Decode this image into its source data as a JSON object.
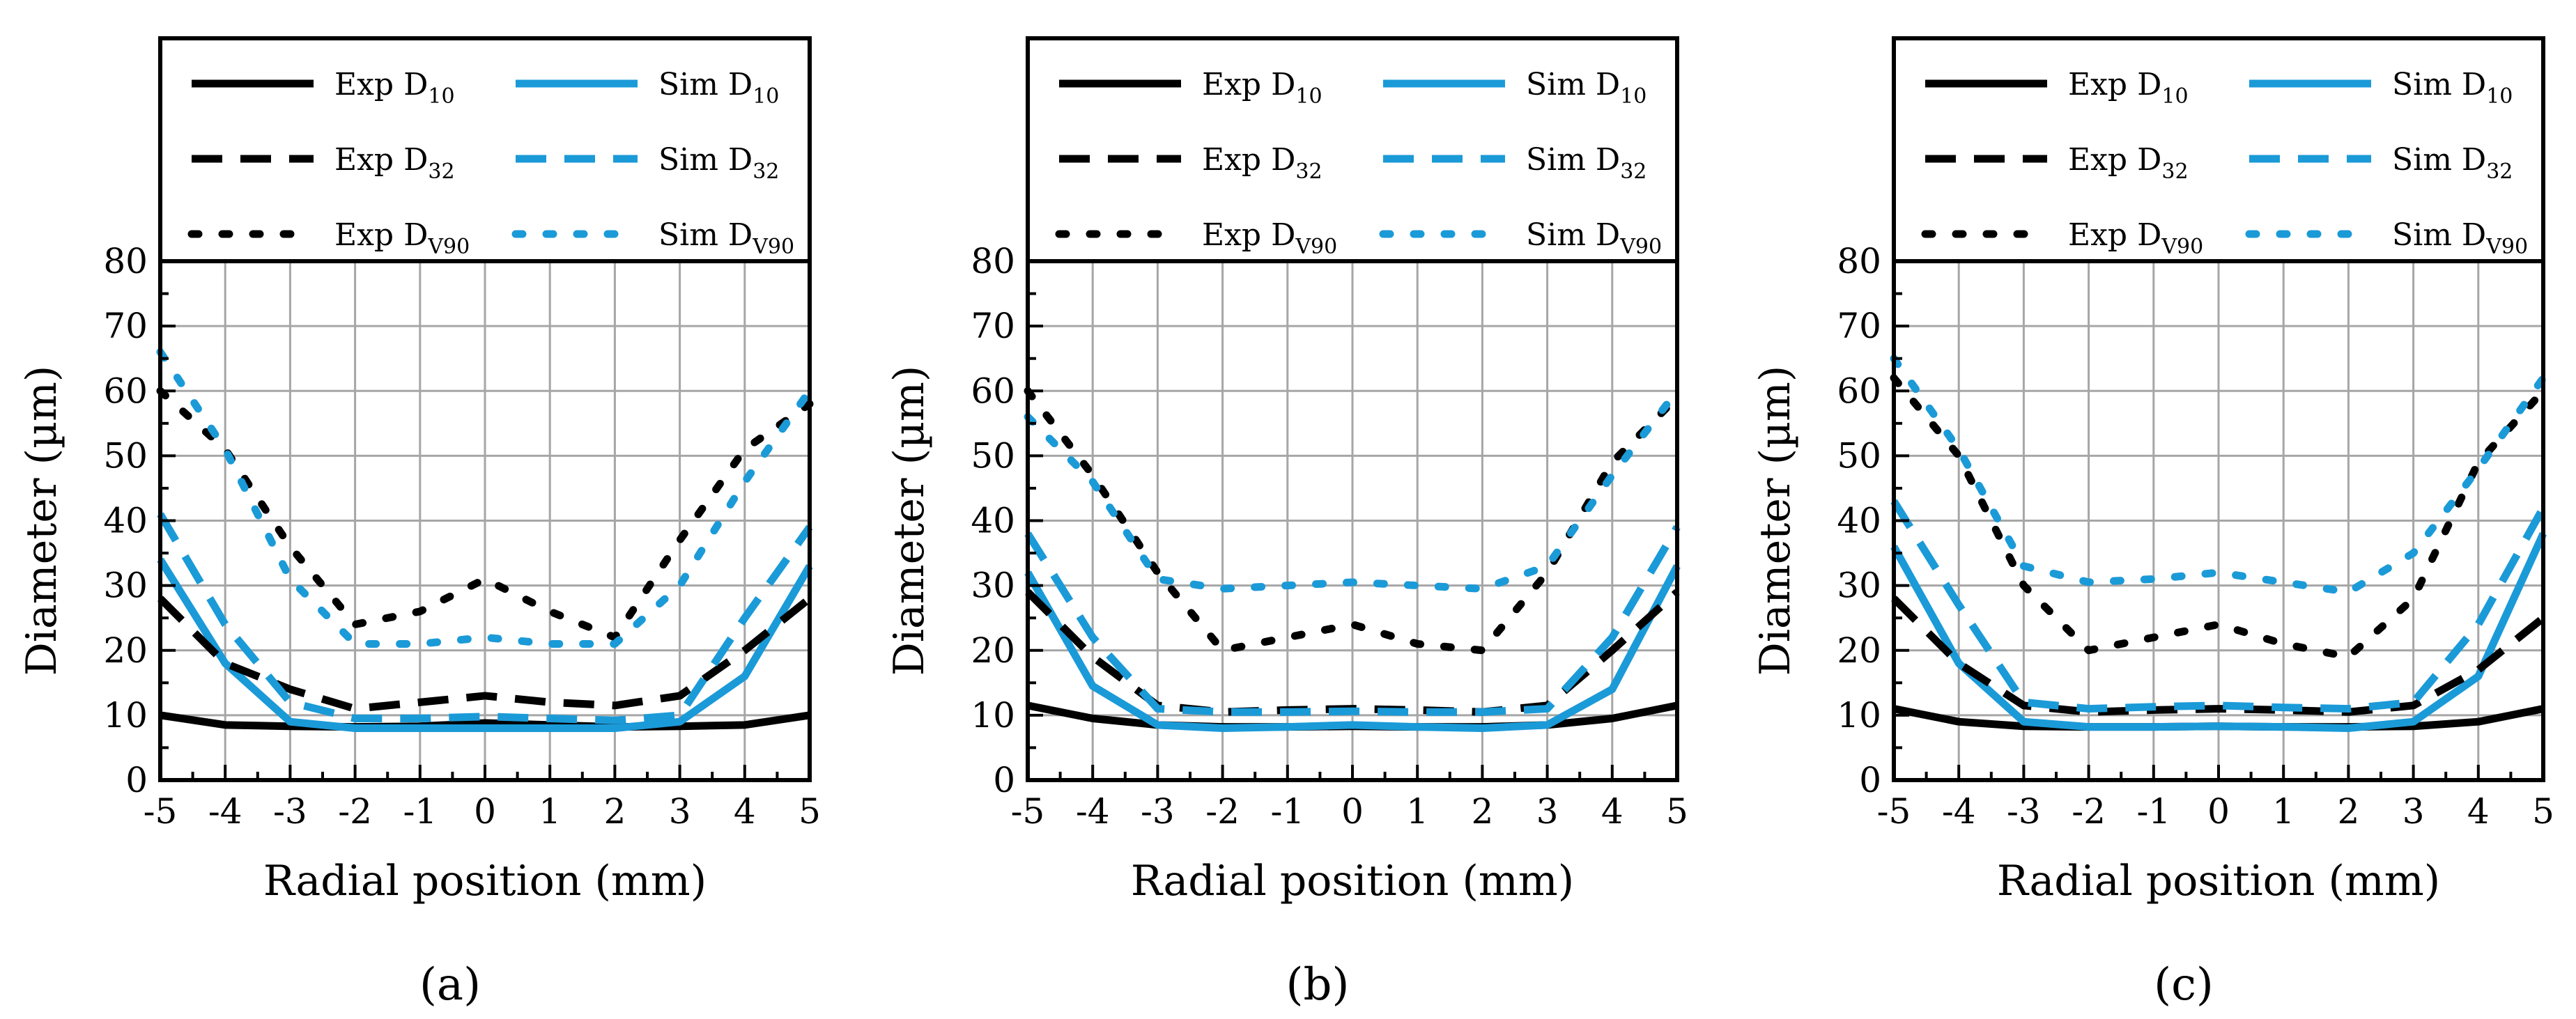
{
  "chart_data": [
    {
      "type": "line",
      "panel_label": "(a)",
      "xlabel": "Radial position (mm)",
      "ylabel": "Diameter (µm)",
      "xlim": [
        -5,
        5
      ],
      "ylim": [
        0,
        80
      ],
      "xticks": [
        -5,
        -4,
        -3,
        -2,
        -1,
        0,
        1,
        2,
        3,
        4,
        5
      ],
      "yticks": [
        0,
        10,
        20,
        30,
        40,
        50,
        60,
        70,
        80
      ],
      "grid": true,
      "legend_position": "top",
      "x": [
        -5,
        -4,
        -3,
        -2,
        -1,
        0,
        1,
        2,
        3,
        4,
        5
      ],
      "series": [
        {
          "name": "Exp D10",
          "label_main": "Exp D",
          "label_sub": "10",
          "color": "#000000",
          "dash": "solid",
          "values": [
            10,
            8.5,
            8.3,
            8.2,
            8.3,
            8.8,
            8.5,
            8.2,
            8.3,
            8.5,
            10
          ]
        },
        {
          "name": "Sim D10",
          "label_main": "Sim D",
          "label_sub": "10",
          "color": "#1b9ad8",
          "dash": "solid",
          "values": [
            34,
            18,
            9,
            8,
            8,
            8,
            8,
            8,
            9,
            16,
            33
          ]
        },
        {
          "name": "Exp D32",
          "label_main": "Exp D",
          "label_sub": "32",
          "color": "#000000",
          "dash": "dash",
          "values": [
            28,
            18,
            14,
            11,
            12,
            13,
            12,
            11.5,
            13,
            20,
            28
          ]
        },
        {
          "name": "Sim D32",
          "label_main": "Sim D",
          "label_sub": "32",
          "color": "#1b9ad8",
          "dash": "dash",
          "values": [
            41,
            24,
            12,
            9.5,
            9.5,
            9.8,
            9.5,
            9.2,
            10,
            25,
            39
          ]
        },
        {
          "name": "Exp DV90",
          "label_main": "Exp D",
          "label_sub": "V90",
          "color": "#000000",
          "dash": "dot",
          "values": [
            60,
            51,
            36,
            24,
            26,
            31,
            26,
            22,
            37,
            51,
            58
          ]
        },
        {
          "name": "Sim DV90",
          "label_main": "Sim D",
          "label_sub": "V90",
          "color": "#1b9ad8",
          "dash": "dot",
          "values": [
            66,
            51,
            31,
            21,
            21,
            22,
            21,
            21,
            30,
            46,
            60
          ]
        }
      ]
    },
    {
      "type": "line",
      "panel_label": "(b)",
      "xlabel": "Radial position (mm)",
      "ylabel": "Diameter (µm)",
      "xlim": [
        -5,
        5
      ],
      "ylim": [
        0,
        80
      ],
      "xticks": [
        -5,
        -4,
        -3,
        -2,
        -1,
        0,
        1,
        2,
        3,
        4,
        5
      ],
      "yticks": [
        0,
        10,
        20,
        30,
        40,
        50,
        60,
        70,
        80
      ],
      "grid": true,
      "legend_position": "top",
      "x": [
        -5,
        -4,
        -3,
        -2,
        -1,
        0,
        1,
        2,
        3,
        4,
        5
      ],
      "series": [
        {
          "name": "Exp D10",
          "label_main": "Exp D",
          "label_sub": "10",
          "color": "#000000",
          "dash": "solid",
          "values": [
            11.5,
            9.5,
            8.5,
            8.2,
            8.2,
            8.3,
            8.2,
            8.2,
            8.5,
            9.5,
            11.5
          ]
        },
        {
          "name": "Sim D10",
          "label_main": "Sim D",
          "label_sub": "10",
          "color": "#1b9ad8",
          "dash": "solid",
          "values": [
            32,
            14.5,
            8.5,
            8,
            8.2,
            8.5,
            8.2,
            8,
            8.5,
            14,
            33
          ]
        },
        {
          "name": "Exp D32",
          "label_main": "Exp D",
          "label_sub": "32",
          "color": "#000000",
          "dash": "dash",
          "values": [
            29,
            19,
            11.5,
            10.5,
            10.8,
            11,
            10.8,
            10.5,
            11.5,
            20,
            29
          ]
        },
        {
          "name": "Sim D32",
          "label_main": "Sim D",
          "label_sub": "32",
          "color": "#1b9ad8",
          "dash": "dash",
          "values": [
            38,
            22,
            11,
            10.5,
            10.5,
            10.6,
            10.5,
            10.5,
            11,
            22,
            39
          ]
        },
        {
          "name": "Exp DV90",
          "label_main": "Exp D",
          "label_sub": "V90",
          "color": "#000000",
          "dash": "dot",
          "values": [
            60,
            47,
            32,
            20,
            22,
            24,
            21,
            20,
            32,
            49,
            59
          ]
        },
        {
          "name": "Sim DV90",
          "label_main": "Sim D",
          "label_sub": "V90",
          "color": "#1b9ad8",
          "dash": "dot",
          "values": [
            56,
            46,
            31,
            29.5,
            30,
            30.5,
            30,
            29.5,
            33,
            47,
            60
          ]
        }
      ]
    },
    {
      "type": "line",
      "panel_label": "(c)",
      "xlabel": "Radial position (mm)",
      "ylabel": "Diameter (µm)",
      "xlim": [
        -5,
        5
      ],
      "ylim": [
        0,
        80
      ],
      "xticks": [
        -5,
        -4,
        -3,
        -2,
        -1,
        0,
        1,
        2,
        3,
        4,
        5
      ],
      "yticks": [
        0,
        10,
        20,
        30,
        40,
        50,
        60,
        70,
        80
      ],
      "grid": true,
      "legend_position": "top",
      "x": [
        -5,
        -4,
        -3,
        -2,
        -1,
        0,
        1,
        2,
        3,
        4,
        5
      ],
      "series": [
        {
          "name": "Exp D10",
          "label_main": "Exp D",
          "label_sub": "10",
          "color": "#000000",
          "dash": "solid",
          "values": [
            11,
            9,
            8.3,
            8.2,
            8.2,
            8.3,
            8.2,
            8.2,
            8.3,
            9,
            11
          ]
        },
        {
          "name": "Sim D10",
          "label_main": "Sim D",
          "label_sub": "10",
          "color": "#1b9ad8",
          "dash": "solid",
          "values": [
            36,
            18,
            9,
            8.2,
            8.2,
            8.3,
            8.2,
            8,
            9,
            16,
            38
          ]
        },
        {
          "name": "Exp D32",
          "label_main": "Exp D",
          "label_sub": "32",
          "color": "#000000",
          "dash": "dash",
          "values": [
            28,
            18,
            11.5,
            10.5,
            10.8,
            11,
            10.8,
            10.5,
            11.5,
            17,
            25
          ]
        },
        {
          "name": "Sim D32",
          "label_main": "Sim D",
          "label_sub": "32",
          "color": "#1b9ad8",
          "dash": "dash",
          "values": [
            43,
            27,
            12,
            11,
            11.3,
            11.5,
            11.2,
            11,
            12,
            24,
            42
          ]
        },
        {
          "name": "Exp DV90",
          "label_main": "Exp D",
          "label_sub": "V90",
          "color": "#000000",
          "dash": "dot",
          "values": [
            62,
            50,
            30,
            20,
            22,
            24,
            21,
            19,
            28,
            49,
            60
          ]
        },
        {
          "name": "Sim DV90",
          "label_main": "Sim D",
          "label_sub": "V90",
          "color": "#1b9ad8",
          "dash": "dot",
          "values": [
            65,
            51,
            33,
            30.5,
            31,
            32,
            30.5,
            29,
            35,
            48,
            62
          ]
        }
      ]
    }
  ]
}
